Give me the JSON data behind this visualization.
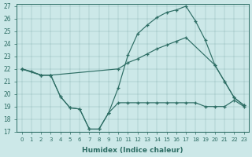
{
  "xlabel": "Humidex (Indice chaleur)",
  "bg_color": "#cce8e8",
  "line_color": "#2e6e65",
  "xlim": [
    -0.5,
    23.5
  ],
  "ylim": [
    17,
    27.2
  ],
  "yticks": [
    17,
    18,
    19,
    20,
    21,
    22,
    23,
    24,
    25,
    26,
    27
  ],
  "xticks": [
    0,
    1,
    2,
    3,
    4,
    5,
    6,
    7,
    8,
    9,
    10,
    11,
    12,
    13,
    14,
    15,
    16,
    17,
    18,
    19,
    20,
    21,
    22,
    23
  ],
  "curve1_x": [
    0,
    1,
    2,
    3,
    4,
    5,
    6,
    7,
    8,
    9,
    10,
    11,
    12,
    13,
    14,
    15,
    16,
    17,
    18,
    19,
    20,
    21,
    22,
    23
  ],
  "curve1_y": [
    22.0,
    21.8,
    21.5,
    21.5,
    19.8,
    18.9,
    18.8,
    17.2,
    17.2,
    18.5,
    20.5,
    23.1,
    24.8,
    25.5,
    26.1,
    26.5,
    26.7,
    27.0,
    25.8,
    24.3,
    22.3,
    21.0,
    19.7,
    19.1
  ],
  "curve2_x": [
    0,
    2,
    3,
    10,
    11,
    12,
    13,
    14,
    15,
    16,
    17,
    20,
    21,
    22,
    23
  ],
  "curve2_y": [
    22.0,
    21.5,
    21.5,
    22.0,
    22.5,
    22.8,
    23.2,
    23.6,
    23.9,
    24.2,
    24.5,
    22.3,
    21.0,
    19.7,
    19.1
  ],
  "curve3_x": [
    0,
    2,
    3,
    4,
    5,
    6,
    7,
    8,
    9,
    10,
    11,
    12,
    13,
    14,
    15,
    16,
    17,
    18,
    19,
    20,
    21,
    22,
    23
  ],
  "curve3_y": [
    22.0,
    21.5,
    21.5,
    19.8,
    18.9,
    18.8,
    17.2,
    17.2,
    18.5,
    19.3,
    19.3,
    19.3,
    19.3,
    19.3,
    19.3,
    19.3,
    19.3,
    19.3,
    19.0,
    19.0,
    19.0,
    19.5,
    19.0
  ]
}
